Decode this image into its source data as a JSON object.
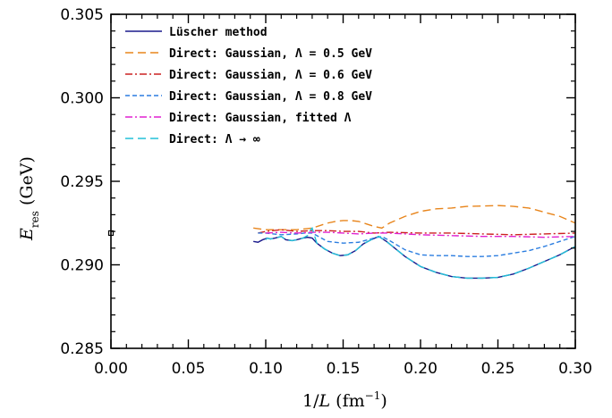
{
  "chart_data": {
    "type": "line",
    "xlabel": "1/L (fm⁻¹)",
    "ylabel": "E_res (GeV)",
    "xlim": [
      0.0,
      0.3
    ],
    "ylim": [
      0.285,
      0.305
    ],
    "xticks": [
      0.0,
      0.05,
      0.1,
      0.15,
      0.2,
      0.25,
      0.3
    ],
    "yticks": [
      0.285,
      0.29,
      0.295,
      0.3,
      0.305
    ],
    "xtick_labels": [
      "0.00",
      "0.05",
      "0.10",
      "0.15",
      "0.20",
      "0.25",
      "0.30"
    ],
    "ytick_labels": [
      "0.285",
      "0.290",
      "0.295",
      "0.300",
      "0.305"
    ],
    "legend_placement": "top-left",
    "grid": false,
    "point_marker": {
      "x": 0.0,
      "y": 0.2919
    },
    "series": [
      {
        "name": "Lüscher method",
        "color": "#1a1a8c",
        "dash": "solid",
        "x": [
          0.092,
          0.095,
          0.098,
          0.101,
          0.103,
          0.106,
          0.108,
          0.11,
          0.113,
          0.117,
          0.12,
          0.124,
          0.127,
          0.13,
          0.133,
          0.138,
          0.143,
          0.148,
          0.153,
          0.158,
          0.163,
          0.168,
          0.173,
          0.178,
          0.19,
          0.2,
          0.21,
          0.22,
          0.23,
          0.24,
          0.25,
          0.26,
          0.27,
          0.28,
          0.29,
          0.3
        ],
        "y": [
          0.2914,
          0.29135,
          0.2915,
          0.2916,
          0.29155,
          0.2916,
          0.29165,
          0.2917,
          0.2915,
          0.29145,
          0.2915,
          0.2916,
          0.29165,
          0.2916,
          0.2913,
          0.29095,
          0.2907,
          0.29055,
          0.2906,
          0.29085,
          0.29125,
          0.2915,
          0.2917,
          0.2914,
          0.2905,
          0.2899,
          0.28955,
          0.2893,
          0.2892,
          0.2892,
          0.28925,
          0.28945,
          0.2898,
          0.2902,
          0.2906,
          0.2911
        ]
      },
      {
        "name": "Direct: Gaussian, Λ = 0.5 GeV",
        "color": "#e8851c",
        "dash": "long",
        "x": [
          0.092,
          0.1,
          0.11,
          0.12,
          0.13,
          0.14,
          0.145,
          0.15,
          0.155,
          0.16,
          0.165,
          0.17,
          0.175,
          0.18,
          0.19,
          0.2,
          0.21,
          0.22,
          0.23,
          0.24,
          0.25,
          0.26,
          0.27,
          0.28,
          0.29,
          0.3
        ],
        "y": [
          0.2922,
          0.2921,
          0.2921,
          0.2921,
          0.2922,
          0.2925,
          0.2926,
          0.29265,
          0.29265,
          0.2926,
          0.29245,
          0.2923,
          0.2922,
          0.2925,
          0.2929,
          0.2932,
          0.29335,
          0.2934,
          0.2935,
          0.29352,
          0.29355,
          0.2935,
          0.2934,
          0.29315,
          0.2929,
          0.2925
        ]
      },
      {
        "name": "Direct: Gaussian, Λ = 0.6 GeV",
        "color": "#cc2020",
        "dash": "dashdot",
        "x": [
          0.095,
          0.1,
          0.11,
          0.12,
          0.13,
          0.14,
          0.15,
          0.16,
          0.17,
          0.18,
          0.2,
          0.22,
          0.24,
          0.26,
          0.28,
          0.3
        ],
        "y": [
          0.2919,
          0.292,
          0.2921,
          0.292,
          0.29205,
          0.29205,
          0.292,
          0.292,
          0.2919,
          0.29195,
          0.2919,
          0.2919,
          0.29185,
          0.2918,
          0.29185,
          0.2919
        ]
      },
      {
        "name": "Direct: Gaussian, Λ = 0.8 GeV",
        "color": "#2b7de0",
        "dash": "short",
        "x": [
          0.095,
          0.1,
          0.11,
          0.12,
          0.125,
          0.13,
          0.14,
          0.15,
          0.16,
          0.17,
          0.175,
          0.18,
          0.19,
          0.2,
          0.21,
          0.22,
          0.23,
          0.24,
          0.25,
          0.26,
          0.27,
          0.28,
          0.29,
          0.3
        ],
        "y": [
          0.2919,
          0.2919,
          0.2918,
          0.29185,
          0.2919,
          0.2919,
          0.2914,
          0.2913,
          0.29135,
          0.2916,
          0.2917,
          0.29145,
          0.2909,
          0.2906,
          0.29055,
          0.29055,
          0.2905,
          0.2905,
          0.29055,
          0.2907,
          0.29085,
          0.2911,
          0.2914,
          0.2917
        ]
      },
      {
        "name": "Direct: Gaussian, fitted Λ",
        "color": "#e020d0",
        "dash": "dashdot",
        "x": [
          0.1,
          0.11,
          0.12,
          0.13,
          0.14,
          0.15,
          0.16,
          0.17,
          0.18,
          0.2,
          0.22,
          0.24,
          0.26,
          0.28,
          0.3
        ],
        "y": [
          0.2919,
          0.29195,
          0.2919,
          0.29195,
          0.29195,
          0.2919,
          0.29185,
          0.2919,
          0.2919,
          0.2918,
          0.29175,
          0.2917,
          0.2917,
          0.29165,
          0.2917
        ]
      },
      {
        "name": "Direct: Λ → ∞",
        "color": "#22c0d8",
        "dash": "long",
        "x": [
          0.1,
          0.101,
          0.103,
          0.106,
          0.108,
          0.11,
          0.113,
          0.117,
          0.12,
          0.124,
          0.127,
          0.129,
          0.13,
          0.131,
          0.133,
          0.138,
          0.143,
          0.148,
          0.153,
          0.158,
          0.163,
          0.168,
          0.173,
          0.178,
          0.19,
          0.2,
          0.21,
          0.22,
          0.23,
          0.24,
          0.25,
          0.26,
          0.27,
          0.28,
          0.29,
          0.3
        ],
        "y": [
          0.2915,
          0.2916,
          0.29155,
          0.2916,
          0.29165,
          0.2917,
          0.2915,
          0.29145,
          0.2915,
          0.2916,
          0.29175,
          0.2921,
          0.2922,
          0.2919,
          0.2913,
          0.29095,
          0.2907,
          0.29055,
          0.2906,
          0.29085,
          0.29125,
          0.2915,
          0.2917,
          0.2914,
          0.2905,
          0.2899,
          0.28955,
          0.2893,
          0.2892,
          0.2892,
          0.28925,
          0.28945,
          0.2898,
          0.2902,
          0.2906,
          0.2911
        ]
      }
    ]
  }
}
